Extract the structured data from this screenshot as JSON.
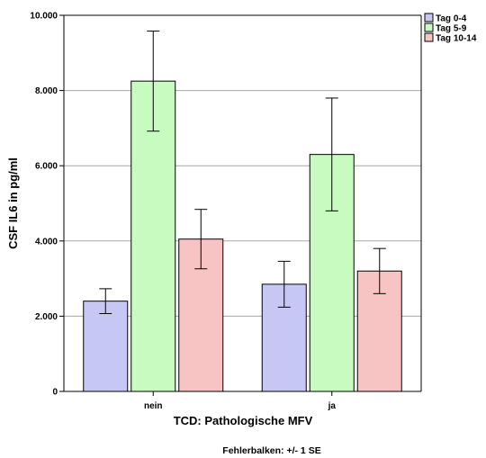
{
  "chart_data": {
    "type": "bar",
    "categories": [
      "nein",
      "ja"
    ],
    "series": [
      {
        "name": "Tag 0-4",
        "color": "#c7c7f5",
        "values": [
          2400,
          2850
        ],
        "error": [
          330,
          610
        ]
      },
      {
        "name": "Tag 5-9",
        "color": "#c7fbc0",
        "values": [
          8250,
          6300
        ],
        "error": [
          1330,
          1500
        ]
      },
      {
        "name": "Tag 10-14",
        "color": "#f8c3c3",
        "values": [
          4050,
          3200
        ],
        "error": [
          790,
          600
        ]
      }
    ],
    "xlabel": "TCD: Pathologische MFV",
    "ylabel": "CSF IL6 in pg/ml",
    "ylim": [
      0,
      10000
    ],
    "yticks": [
      {
        "value": 0,
        "label": "0"
      },
      {
        "value": 2000,
        "label": "2.000"
      },
      {
        "value": 4000,
        "label": "4.000"
      },
      {
        "value": 6000,
        "label": "6.000"
      },
      {
        "value": 8000,
        "label": "8.000"
      },
      {
        "value": 10000,
        "label": "10.000"
      }
    ],
    "grid": true,
    "legend_position": "top-right",
    "footnote": "Fehlerbalken: +/- 1 SE"
  }
}
